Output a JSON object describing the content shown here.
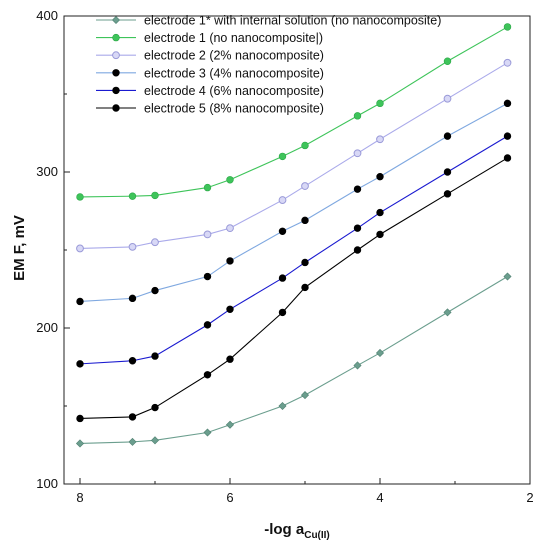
{
  "chart_data": {
    "type": "line",
    "title": "",
    "xlabel": "-log a",
    "xlabel_sub": "Cu(II)",
    "ylabel": "EM F, mV",
    "xlim": [
      8,
      2
    ],
    "ylim": [
      100,
      400
    ],
    "x_reversed": true,
    "xticks": [
      "8",
      "6",
      "4",
      "2"
    ],
    "yticks": [
      "100",
      "200",
      "300",
      "400"
    ],
    "grid": false,
    "legend_position": "top",
    "x": [
      8.0,
      7.3,
      7.0,
      6.3,
      6.0,
      5.3,
      5.0,
      4.3,
      4.0,
      3.1,
      2.3
    ],
    "series": [
      {
        "name": "electrode 1* with internal solution (no nanocomposite)",
        "color": "#6b9e8e",
        "marker": "diamond",
        "values": [
          126,
          127,
          128,
          133,
          138,
          150,
          157,
          176,
          184,
          210,
          233
        ]
      },
      {
        "name": "electrode 1 (no nanocomposite|)",
        "color": "#3ec45a",
        "marker": "circle",
        "values": [
          284,
          284.5,
          285,
          290,
          295,
          310,
          317,
          336,
          344,
          371,
          393
        ]
      },
      {
        "name": "electrode 2 (2% nanocomposite)",
        "color": "#aaaaea",
        "marker": "circle-light",
        "values": [
          251,
          252,
          255,
          260,
          264,
          282,
          291,
          312,
          321,
          347,
          370
        ]
      },
      {
        "name": "electrode 3 (4% nanocomposite)",
        "color": "#7fa8e0",
        "marker": "circle-black",
        "values": [
          217,
          219,
          224,
          233,
          243,
          262,
          269,
          289,
          297,
          323,
          344
        ]
      },
      {
        "name": "electrode 4 (6% nanocomposite)",
        "color": "#1a1ad0",
        "marker": "circle-black",
        "values": [
          177,
          179,
          182,
          202,
          212,
          232,
          242,
          264,
          274,
          300,
          323
        ]
      },
      {
        "name": "electrode 5 (8% nanocomposite)",
        "color": "#000000",
        "marker": "circle-black",
        "values": [
          142,
          143,
          149,
          170,
          180,
          210,
          226,
          250,
          260,
          286,
          309
        ]
      }
    ]
  }
}
